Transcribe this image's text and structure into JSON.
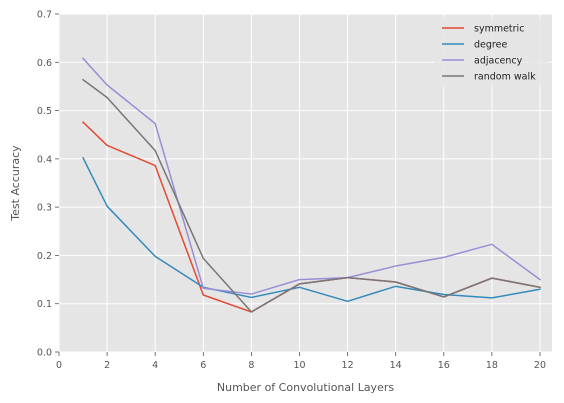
{
  "chart_data": {
    "type": "line",
    "title": "",
    "xlabel": "Number of Convolutional Layers",
    "ylabel": "Test Accuracy",
    "xlim": [
      0,
      20.5
    ],
    "ylim": [
      0,
      0.7
    ],
    "xticks": [
      0,
      2,
      4,
      6,
      8,
      10,
      12,
      14,
      16,
      18,
      20
    ],
    "yticks": [
      0.0,
      0.1,
      0.2,
      0.3,
      0.4,
      0.5,
      0.6,
      0.7
    ],
    "xtick_labels": [
      "0",
      "2",
      "4",
      "6",
      "8",
      "10",
      "12",
      "14",
      "16",
      "18",
      "20"
    ],
    "ytick_labels": [
      "0.0",
      "0.1",
      "0.2",
      "0.3",
      "0.4",
      "0.5",
      "0.6",
      "0.7"
    ],
    "grid": true,
    "legend_position": "top-right",
    "x": [
      1,
      2,
      4,
      6,
      8,
      10,
      12,
      14,
      16,
      18,
      20
    ],
    "series": [
      {
        "name": "symmetric",
        "color": "#E24A33",
        "values": [
          0.476,
          0.428,
          0.386,
          0.118,
          0.083,
          0.141,
          0.154,
          0.145,
          0.114,
          0.153,
          0.134
        ]
      },
      {
        "name": "degree",
        "color": "#348ABD",
        "values": [
          0.402,
          0.302,
          0.198,
          0.134,
          0.113,
          0.134,
          0.105,
          0.136,
          0.119,
          0.112,
          0.13
        ]
      },
      {
        "name": "adjacency",
        "color": "#988ED5",
        "values": [
          0.608,
          0.553,
          0.473,
          0.132,
          0.12,
          0.15,
          0.154,
          0.178,
          0.196,
          0.223,
          0.15
        ]
      },
      {
        "name": "random walk",
        "color": "#777777",
        "values": [
          0.564,
          0.527,
          0.417,
          0.194,
          0.083,
          0.141,
          0.154,
          0.145,
          0.114,
          0.153,
          0.134
        ]
      }
    ]
  }
}
